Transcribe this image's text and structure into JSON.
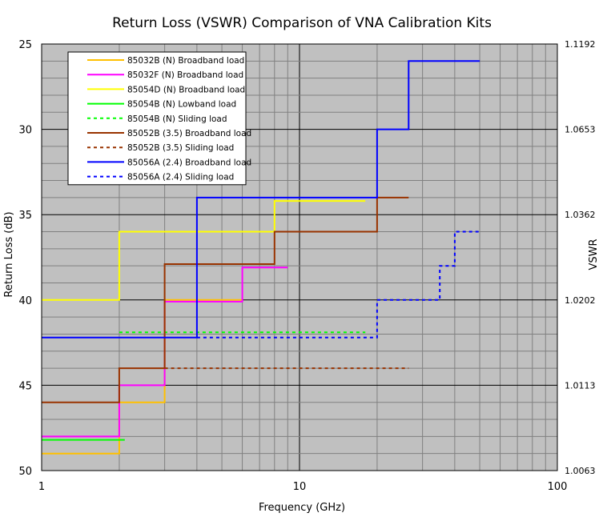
{
  "chart_data": {
    "type": "line",
    "title": "Return Loss (VSWR) Comparison of VNA Calibration Kits",
    "xlabel": "Frequency (GHz)",
    "ylabel": "Return Loss (dB)",
    "y2label": "VSWR",
    "x_scale": "log",
    "xlim": [
      1,
      100
    ],
    "ylim": [
      25,
      50
    ],
    "y_inverted": true,
    "grid": true,
    "legend_position": "top-left",
    "x_ticks": [
      1,
      10,
      100
    ],
    "y_ticks": [
      25,
      30,
      35,
      40,
      45,
      50
    ],
    "y2_ticks": [
      {
        "rl": 25,
        "label": "1.1192"
      },
      {
        "rl": 30,
        "label": "1.0653"
      },
      {
        "rl": 35,
        "label": "1.0362"
      },
      {
        "rl": 40,
        "label": "1.0202"
      },
      {
        "rl": 45,
        "label": "1.0113"
      },
      {
        "rl": 50,
        "label": "1.0063"
      }
    ],
    "series": [
      {
        "name": "85032B (N) Broadband load",
        "color": "#ffc000",
        "dash": false,
        "points": [
          [
            1,
            49
          ],
          [
            2,
            49
          ],
          [
            2,
            46
          ],
          [
            3,
            46
          ],
          [
            3,
            40
          ],
          [
            6,
            40
          ]
        ]
      },
      {
        "name": "85032F (N) Broadband load",
        "color": "#ff00ff",
        "dash": false,
        "points": [
          [
            1,
            48
          ],
          [
            2,
            48
          ],
          [
            2,
            45
          ],
          [
            3,
            45
          ],
          [
            3,
            40.1
          ],
          [
            6,
            40.1
          ],
          [
            6,
            38.1
          ],
          [
            9,
            38.1
          ]
        ]
      },
      {
        "name": "85054D (N) Broadband load",
        "color": "#ffff00",
        "dash": false,
        "points": [
          [
            1,
            40
          ],
          [
            2,
            40
          ],
          [
            2,
            36
          ],
          [
            8,
            36
          ],
          [
            8,
            34.2
          ],
          [
            18,
            34.2
          ]
        ]
      },
      {
        "name": "85054B (N) Lowband load",
        "color": "#00ff00",
        "dash": false,
        "points": [
          [
            1,
            48.2
          ],
          [
            2.1,
            48.2
          ]
        ]
      },
      {
        "name": "85054B (N) Sliding load",
        "color": "#00ff00",
        "dash": true,
        "points": [
          [
            2,
            41.9
          ],
          [
            18,
            41.9
          ]
        ]
      },
      {
        "name": "85052B (3.5) Broadband load",
        "color": "#993300",
        "dash": false,
        "points": [
          [
            1,
            46
          ],
          [
            2,
            46
          ],
          [
            2,
            44
          ],
          [
            3,
            44
          ],
          [
            3,
            37.9
          ],
          [
            8,
            37.9
          ],
          [
            8,
            36
          ],
          [
            20,
            36
          ],
          [
            20,
            34
          ],
          [
            26.5,
            34
          ]
        ]
      },
      {
        "name": "85052B (3.5) Sliding load",
        "color": "#993300",
        "dash": true,
        "points": [
          [
            3,
            44
          ],
          [
            26.5,
            44
          ]
        ]
      },
      {
        "name": "85056A (2.4) Broadband load",
        "color": "#0000ff",
        "dash": false,
        "points": [
          [
            1,
            42.2
          ],
          [
            4,
            42.2
          ],
          [
            4,
            34
          ],
          [
            20,
            34
          ],
          [
            20,
            30
          ],
          [
            26.5,
            30
          ],
          [
            26.5,
            26
          ],
          [
            50,
            26
          ]
        ]
      },
      {
        "name": "85056A (2.4) Sliding load",
        "color": "#0000ff",
        "dash": true,
        "points": [
          [
            4,
            42.2
          ],
          [
            20,
            42.2
          ],
          [
            20,
            40
          ],
          [
            35,
            40
          ],
          [
            35,
            38
          ],
          [
            40,
            38
          ],
          [
            40,
            36
          ],
          [
            50,
            36
          ]
        ]
      }
    ]
  }
}
